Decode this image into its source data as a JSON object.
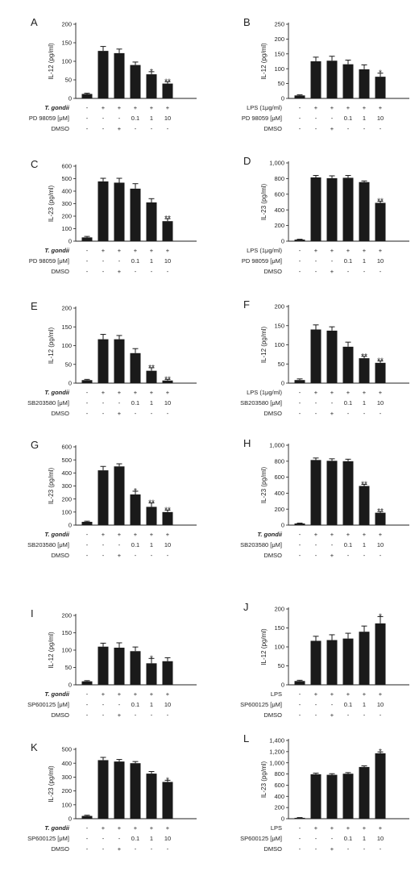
{
  "panels": [
    {
      "letter": "A",
      "ylabel": "IL-12 (pg/ml)",
      "yticks": [
        "0",
        "50",
        "100",
        "150",
        "200"
      ],
      "ylim": [
        0,
        200
      ],
      "rows": [
        {
          "label": "T. gondii",
          "italic": true,
          "marks": [
            "-",
            "+",
            "+",
            "+",
            "+",
            "+"
          ]
        },
        {
          "label": "PD 98059 [μM]",
          "italic": false,
          "marks": [
            "-",
            "-",
            "-",
            "0.1",
            "1",
            "10"
          ]
        },
        {
          "label": "DMSO",
          "italic": false,
          "marks": [
            "-",
            "-",
            "+",
            "-",
            "-",
            "-"
          ]
        }
      ]
    },
    {
      "letter": "B",
      "ylabel": "IL-12 (pg/ml)",
      "yticks": [
        "0",
        "50",
        "100",
        "150",
        "200",
        "250"
      ],
      "ylim": [
        0,
        250
      ],
      "rows": [
        {
          "label": "LPS (1μg/ml)",
          "italic": false,
          "marks": [
            "-",
            "+",
            "+",
            "+",
            "+",
            "+"
          ]
        },
        {
          "label": "PD 98059 [μM]",
          "italic": false,
          "marks": [
            "-",
            "-",
            "-",
            "0.1",
            "1",
            "10"
          ]
        },
        {
          "label": "DMSO",
          "italic": false,
          "marks": [
            "-",
            "-",
            "+",
            "-",
            "-",
            "-"
          ]
        }
      ]
    },
    {
      "letter": "C",
      "ylabel": "IL-23 (pg/ml)",
      "yticks": [
        "0",
        "100",
        "200",
        "300",
        "400",
        "500",
        "600"
      ],
      "ylim": [
        0,
        600
      ],
      "rows": [
        {
          "label": "T. gondii",
          "italic": true,
          "marks": [
            "-",
            "+",
            "+",
            "+",
            "+",
            "+"
          ]
        },
        {
          "label": "PD 98059 [μM]",
          "italic": false,
          "marks": [
            "-",
            "-",
            "-",
            "0.1",
            "1",
            "10"
          ]
        },
        {
          "label": "DMSO",
          "italic": false,
          "marks": [
            "-",
            "-",
            "+",
            "-",
            "-",
            "-"
          ]
        }
      ]
    },
    {
      "letter": "D",
      "ylabel": "IL-23 (pg/ml)",
      "yticks": [
        "0",
        "200",
        "400",
        "600",
        "800",
        "1,000"
      ],
      "ylim": [
        0,
        1000
      ],
      "rows": [
        {
          "label": "LPS (1μg/ml)",
          "italic": false,
          "marks": [
            "-",
            "+",
            "+",
            "+",
            "+",
            "+"
          ]
        },
        {
          "label": "PD 98059 [μM]",
          "italic": false,
          "marks": [
            "-",
            "-",
            "-",
            "0.1",
            "1",
            "10"
          ]
        },
        {
          "label": "DMSO",
          "italic": false,
          "marks": [
            "-",
            "-",
            "+",
            "-",
            "-",
            "-"
          ]
        }
      ]
    },
    {
      "letter": "E",
      "ylabel": "IL-12 (pg/ml)",
      "yticks": [
        "0",
        "50",
        "100",
        "150",
        "200"
      ],
      "ylim": [
        0,
        200
      ],
      "rows": [
        {
          "label": "T. gondii",
          "italic": true,
          "marks": [
            "-",
            "+",
            "+",
            "+",
            "+",
            "+"
          ]
        },
        {
          "label": "SB203580 [μM]",
          "italic": false,
          "marks": [
            "-",
            "-",
            "-",
            "0.1",
            "1",
            "10"
          ]
        },
        {
          "label": "DMSO",
          "italic": false,
          "marks": [
            "-",
            "-",
            "+",
            "-",
            "-",
            "-"
          ]
        }
      ]
    },
    {
      "letter": "F",
      "ylabel": "IL-12 (pg/ml)",
      "yticks": [
        "0",
        "50",
        "100",
        "150",
        "200"
      ],
      "ylim": [
        0,
        200
      ],
      "rows": [
        {
          "label": "LPS (1μg/ml)",
          "italic": false,
          "marks": [
            "-",
            "+",
            "+",
            "+",
            "+",
            "+"
          ]
        },
        {
          "label": "SB203580 [μM]",
          "italic": false,
          "marks": [
            "-",
            "-",
            "-",
            "0.1",
            "1",
            "10"
          ]
        },
        {
          "label": "DMSO",
          "italic": false,
          "marks": [
            "-",
            "-",
            "+",
            "-",
            "-",
            "-"
          ]
        }
      ]
    },
    {
      "letter": "G",
      "ylabel": "IL-23 (pg/ml)",
      "yticks": [
        "0",
        "100",
        "200",
        "300",
        "400",
        "500",
        "600"
      ],
      "ylim": [
        0,
        600
      ],
      "rows": [
        {
          "label": "T. gondii",
          "italic": true,
          "marks": [
            "-",
            "+",
            "+",
            "+",
            "+",
            "+"
          ]
        },
        {
          "label": "SB203580 [μM]",
          "italic": false,
          "marks": [
            "-",
            "-",
            "-",
            "0.1",
            "1",
            "10"
          ]
        },
        {
          "label": "DMSO",
          "italic": false,
          "marks": [
            "-",
            "-",
            "+",
            "-",
            "-",
            "-"
          ]
        }
      ]
    },
    {
      "letter": "H",
      "ylabel": "IL-23 (pg/ml)",
      "yticks": [
        "0",
        "200",
        "400",
        "600",
        "800",
        "1,000"
      ],
      "ylim": [
        0,
        1000
      ],
      "rows": [
        {
          "label": "T. gondii",
          "italic": true,
          "marks": [
            "-",
            "+",
            "+",
            "+",
            "+",
            "+"
          ]
        },
        {
          "label": "SB203580 [μM]",
          "italic": false,
          "marks": [
            "-",
            "-",
            "-",
            "0.1",
            "1",
            "10"
          ]
        },
        {
          "label": "DMSO",
          "italic": false,
          "marks": [
            "-",
            "-",
            "+",
            "-",
            "-",
            "-"
          ]
        }
      ]
    },
    {
      "letter": "I",
      "ylabel": "IL-12 (pg/ml)",
      "yticks": [
        "0",
        "50",
        "100",
        "150",
        "200"
      ],
      "ylim": [
        0,
        200
      ],
      "rows": [
        {
          "label": "T. gondii",
          "italic": true,
          "marks": [
            "-",
            "+",
            "+",
            "+",
            "+",
            "+"
          ]
        },
        {
          "label": "SP600125 [μM]",
          "italic": false,
          "marks": [
            "-",
            "-",
            "-",
            "0.1",
            "1",
            "10"
          ]
        },
        {
          "label": "DMSO",
          "italic": false,
          "marks": [
            "-",
            "-",
            "+",
            "-",
            "-",
            "-"
          ]
        }
      ]
    },
    {
      "letter": "J",
      "ylabel": "IL-12 (pg/ml)",
      "yticks": [
        "0",
        "50",
        "100",
        "150",
        "200"
      ],
      "ylim": [
        0,
        200
      ],
      "rows": [
        {
          "label": "LPS",
          "italic": false,
          "marks": [
            "-",
            "+",
            "+",
            "+",
            "+",
            "+"
          ]
        },
        {
          "label": "SP600125 [μM]",
          "italic": false,
          "marks": [
            "-",
            "-",
            "-",
            "0.1",
            "1",
            "10"
          ]
        },
        {
          "label": "DMSO",
          "italic": false,
          "marks": [
            "-",
            "-",
            "+",
            "-",
            "-",
            "-"
          ]
        }
      ]
    },
    {
      "letter": "K",
      "ylabel": "IL-23 (pg/ml)",
      "yticks": [
        "0",
        "100",
        "200",
        "300",
        "400",
        "500"
      ],
      "ylim": [
        0,
        500
      ],
      "rows": [
        {
          "label": "T. gondii",
          "italic": true,
          "marks": [
            "-",
            "+",
            "+",
            "+",
            "+",
            "+"
          ]
        },
        {
          "label": "SP600125 [μM]",
          "italic": false,
          "marks": [
            "-",
            "-",
            "-",
            "0.1",
            "1",
            "10"
          ]
        },
        {
          "label": "DMSO",
          "italic": false,
          "marks": [
            "-",
            "-",
            "+",
            "-",
            "-",
            "-"
          ]
        }
      ]
    },
    {
      "letter": "L",
      "ylabel": "IL-23 (pg/ml)",
      "yticks": [
        "0",
        "200",
        "400",
        "600",
        "800",
        "1,000",
        "1,200",
        "1,400"
      ],
      "ylim": [
        0,
        1400
      ],
      "rows": [
        {
          "label": "LPS",
          "italic": false,
          "marks": [
            "-",
            "+",
            "+",
            "+",
            "+",
            "+"
          ]
        },
        {
          "label": "SP600125 [μM]",
          "italic": false,
          "marks": [
            "-",
            "-",
            "-",
            "0.1",
            "1",
            "10"
          ]
        },
        {
          "label": "DMSO",
          "italic": false,
          "marks": [
            "-",
            "-",
            "+",
            "-",
            "-",
            "-"
          ]
        }
      ]
    }
  ],
  "chart_data": [
    {
      "type": "bar",
      "panel": "A",
      "ylabel": "IL-12 (pg/ml)",
      "ylim": [
        0,
        200
      ],
      "grid": false,
      "values": [
        12,
        128,
        122,
        90,
        65,
        40
      ],
      "errors": [
        2,
        12,
        11,
        8,
        7,
        5
      ],
      "significance": [
        "",
        "",
        "",
        "",
        "*",
        "**"
      ]
    },
    {
      "type": "bar",
      "panel": "B",
      "ylabel": "IL-12 (pg/ml)",
      "ylim": [
        0,
        250
      ],
      "grid": false,
      "values": [
        10,
        125,
        127,
        115,
        98,
        73
      ],
      "errors": [
        2,
        14,
        15,
        14,
        15,
        12
      ],
      "significance": [
        "",
        "",
        "",
        "",
        "",
        "*"
      ]
    },
    {
      "type": "bar",
      "panel": "C",
      "ylabel": "IL-23 (pg/ml)",
      "ylim": [
        0,
        600
      ],
      "grid": false,
      "values": [
        30,
        478,
        468,
        420,
        310,
        160
      ],
      "errors": [
        8,
        25,
        35,
        40,
        30,
        20
      ],
      "significance": [
        "",
        "",
        "",
        "",
        "",
        "**"
      ]
    },
    {
      "type": "bar",
      "panel": "D",
      "ylabel": "IL-23 (pg/ml)",
      "ylim": [
        0,
        1000
      ],
      "grid": false,
      "values": [
        20,
        815,
        805,
        810,
        755,
        490
      ],
      "errors": [
        5,
        25,
        30,
        30,
        15,
        20
      ],
      "significance": [
        "",
        "",
        "",
        "",
        "",
        "**"
      ]
    },
    {
      "type": "bar",
      "panel": "E",
      "ylabel": "IL-12 (pg/ml)",
      "ylim": [
        0,
        200
      ],
      "grid": false,
      "values": [
        8,
        117,
        117,
        80,
        33,
        7
      ],
      "errors": [
        2,
        13,
        10,
        12,
        8,
        3
      ],
      "significance": [
        "",
        "",
        "",
        "",
        "**",
        "**"
      ]
    },
    {
      "type": "bar",
      "panel": "F",
      "ylabel": "IL-12 (pg/ml)",
      "ylim": [
        0,
        200
      ],
      "grid": false,
      "values": [
        8,
        140,
        137,
        95,
        65,
        53
      ],
      "errors": [
        3,
        12,
        10,
        12,
        5,
        5
      ],
      "significance": [
        "",
        "",
        "",
        "",
        "**",
        "**"
      ]
    },
    {
      "type": "bar",
      "panel": "G",
      "ylabel": "IL-23 (pg/ml)",
      "ylim": [
        0,
        600
      ],
      "grid": false,
      "values": [
        25,
        420,
        450,
        235,
        140,
        100
      ],
      "errors": [
        5,
        30,
        20,
        25,
        30,
        15
      ],
      "significance": [
        "",
        "",
        "",
        "*",
        "**",
        "**"
      ]
    },
    {
      "type": "bar",
      "panel": "H",
      "ylabel": "IL-23 (pg/ml)",
      "ylim": [
        0,
        1000
      ],
      "grid": false,
      "values": [
        20,
        815,
        805,
        800,
        490,
        155
      ],
      "errors": [
        5,
        25,
        25,
        25,
        20,
        15
      ],
      "significance": [
        "",
        "",
        "",
        "",
        "**",
        "**"
      ]
    },
    {
      "type": "bar",
      "panel": "I",
      "ylabel": "IL-12 (pg/ml)",
      "ylim": [
        0,
        200
      ],
      "grid": false,
      "values": [
        10,
        110,
        107,
        97,
        62,
        68
      ],
      "errors": [
        2,
        10,
        14,
        12,
        14,
        10
      ],
      "significance": [
        "",
        "",
        "",
        "",
        "*",
        ""
      ]
    },
    {
      "type": "bar",
      "panel": "J",
      "ylabel": "IL-12 (pg/ml)",
      "ylim": [
        0,
        200
      ],
      "grid": false,
      "values": [
        10,
        116,
        118,
        122,
        140,
        162
      ],
      "errors": [
        2,
        12,
        14,
        14,
        15,
        18
      ],
      "significance": [
        "",
        "",
        "",
        "",
        "",
        "*"
      ]
    },
    {
      "type": "bar",
      "panel": "K",
      "ylabel": "IL-23 (pg/ml)",
      "ylim": [
        0,
        500
      ],
      "grid": false,
      "values": [
        20,
        422,
        412,
        400,
        325,
        265
      ],
      "errors": [
        5,
        20,
        15,
        12,
        15,
        12
      ],
      "significance": [
        "",
        "",
        "",
        "",
        "",
        "*"
      ]
    },
    {
      "type": "bar",
      "panel": "L",
      "ylabel": "IL-23 (pg/ml)",
      "ylim": [
        0,
        1400
      ],
      "grid": false,
      "values": [
        15,
        795,
        785,
        805,
        925,
        1170
      ],
      "errors": [
        5,
        20,
        20,
        20,
        20,
        25
      ],
      "significance": [
        "",
        "",
        "",
        "",
        "",
        "*"
      ]
    }
  ]
}
